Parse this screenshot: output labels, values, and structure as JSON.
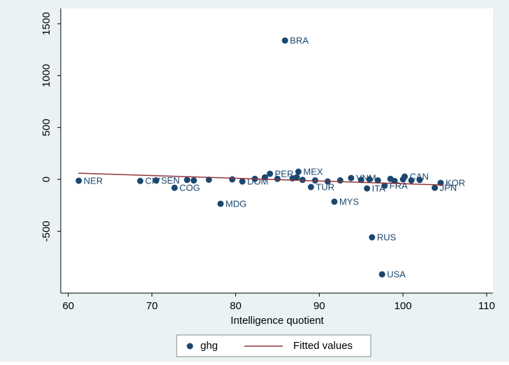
{
  "chart_data": {
    "type": "scatter",
    "x_label": "Intelligence quotient",
    "xlim": [
      59.1,
      110.75
    ],
    "ylim": [
      -1096,
      1648
    ],
    "xticks": [
      60,
      70,
      80,
      90,
      100,
      110
    ],
    "yticks": [
      -500,
      0,
      500,
      1000,
      1500
    ],
    "series": [
      {
        "name": "ghg",
        "color": "#1a476f",
        "kind": "scatter",
        "x": [
          85.9,
          61.25,
          68.6,
          70.5,
          72.7,
          78.2,
          91.8,
          96.3,
          97.5,
          103.8,
          104.5,
          87.5,
          84.1,
          89,
          95.7,
          97.8,
          100.2,
          80.8,
          93.8,
          74.2,
          75,
          76.8,
          79.6,
          82.3,
          83.5,
          85,
          86.8,
          87.3,
          88,
          89.5,
          91,
          92.5,
          95,
          96,
          97,
          98.5,
          99,
          100,
          101,
          102
        ],
        "values": [
          1338,
          -13,
          -15,
          -10,
          -81,
          -235,
          -215,
          -558,
          -915,
          -81,
          -34,
          74,
          54,
          -74,
          -87,
          -61,
          27,
          -20,
          13,
          -5,
          -10,
          -3,
          0,
          5,
          20,
          5,
          10,
          20,
          -5,
          -10,
          -20,
          -10,
          -5,
          0,
          -10,
          5,
          -15,
          0,
          -10,
          -5
        ],
        "labels": [
          "BRA",
          "NER",
          "CIV",
          "SEN",
          "COG",
          "MDG",
          "MYS",
          "RUS",
          "USA",
          "JPN",
          "KOR",
          "MEX",
          "PER",
          "TUR",
          "ITA",
          "FRA",
          "CAN",
          "DOM",
          "VNM",
          null,
          null,
          null,
          null,
          null,
          null,
          null,
          null,
          null,
          null,
          null,
          null,
          null,
          null,
          null,
          null,
          null,
          null,
          null,
          null,
          null
        ]
      },
      {
        "name": "Fitted values",
        "color": "#90353b",
        "kind": "line",
        "x": [
          61.2,
          104.8
        ],
        "values": [
          60,
          -54
        ]
      }
    ]
  }
}
